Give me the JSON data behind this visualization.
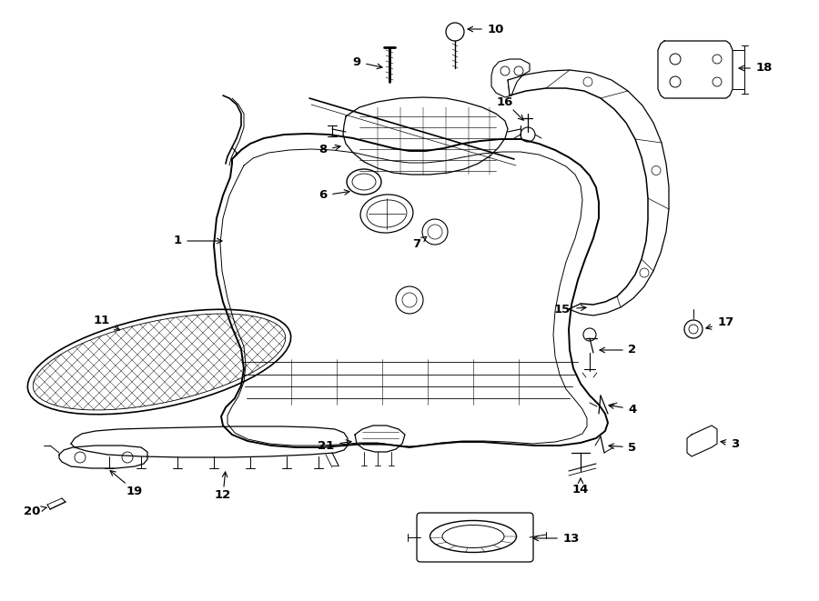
{
  "background_color": "#ffffff",
  "line_color": "#000000",
  "fig_width": 9.0,
  "fig_height": 6.61,
  "dpi": 100,
  "label_fontsize": 9.5
}
